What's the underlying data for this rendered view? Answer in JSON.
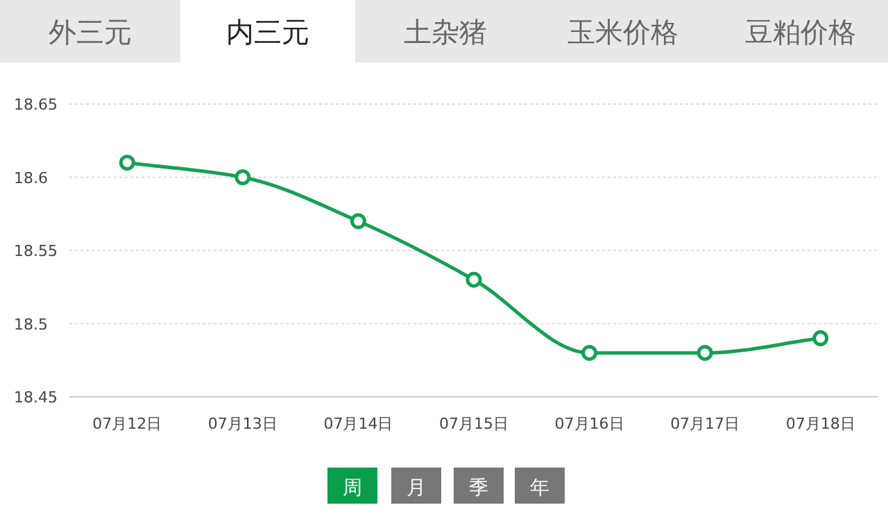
{
  "chart_data": {
    "type": "line",
    "categories": [
      "07月12日",
      "07月13日",
      "07月14日",
      "07月15日",
      "07月16日",
      "07月17日",
      "07月18日"
    ],
    "values": [
      18.61,
      18.6,
      18.57,
      18.53,
      18.48,
      18.48,
      18.49
    ],
    "color": "#16a052",
    "ylim": [
      18.45,
      18.65
    ],
    "yticks": [
      18.45,
      18.5,
      18.55,
      18.6,
      18.65
    ],
    "grid": "y",
    "marker": "circle",
    "annotations": [
      "外三元",
      "内三元",
      "土杂猪",
      "玉米价格",
      "豆粕价格",
      "周",
      "月",
      "季",
      "年"
    ]
  }
}
